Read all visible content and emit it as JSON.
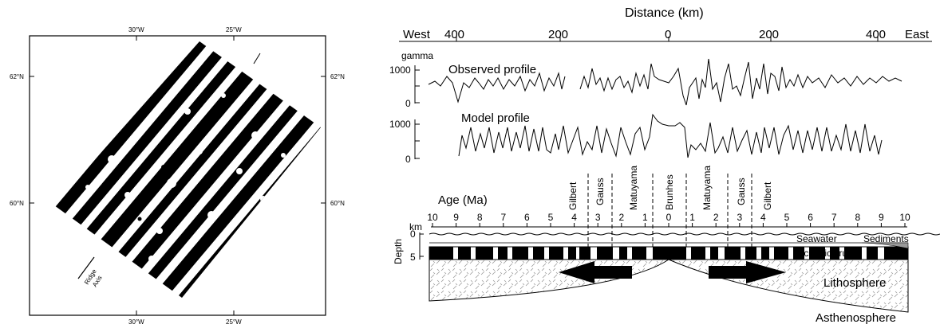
{
  "map": {
    "lon_top": [
      "30°W",
      "25°W"
    ],
    "lon_bottom": [
      "30°W",
      "25°W"
    ],
    "lat_left": [
      "62°N",
      "60°N"
    ],
    "lat_right": [
      "62°N",
      "60°N"
    ],
    "ridge_label_1": "Ridge",
    "ridge_label_2": "Axis"
  },
  "profile": {
    "title": "Distance (km)",
    "west": "West",
    "east": "East",
    "dist_ticks": [
      "400",
      "200",
      "0",
      "200",
      "400"
    ],
    "unit": "gamma",
    "observed_label": "Observed profile",
    "model_label": "Model profile",
    "y_ticks": [
      "1000",
      "0"
    ],
    "y_ticks_model": [
      "1000",
      "0"
    ]
  },
  "chrons": [
    "Gilbert",
    "Gauss",
    "Matuyama",
    "Brunhes",
    "Matuyama",
    "Gauss",
    "Gilbert"
  ],
  "age": {
    "label": "Age (Ma)",
    "ticks": [
      "10",
      "9",
      "8",
      "7",
      "6",
      "5",
      "4",
      "3",
      "2",
      "1",
      "0",
      "1",
      "2",
      "3",
      "4",
      "5",
      "6",
      "7",
      "8",
      "9",
      "10"
    ]
  },
  "section": {
    "km": "km",
    "depth_label": "Depth",
    "depth_ticks": [
      "0",
      "5"
    ],
    "seawater": "Seawater",
    "sediments": "Sediments",
    "crust": "Oceanic crust",
    "lithosphere": "Lithosphere",
    "asthenosphere": "Asthenosphere"
  }
}
